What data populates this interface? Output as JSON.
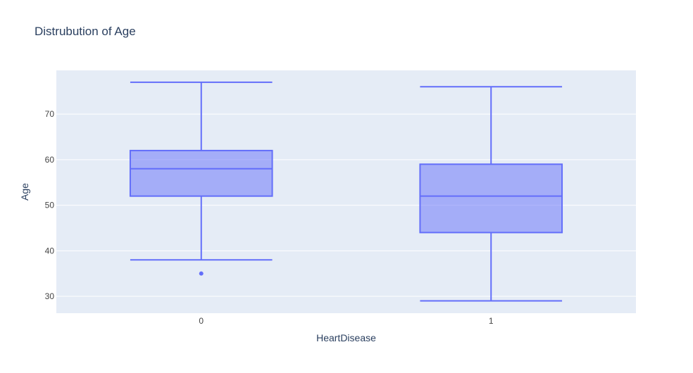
{
  "chart_data": {
    "type": "box",
    "title": "Distrubution of Age",
    "xlabel": "HeartDisease",
    "ylabel": "Age",
    "categories": [
      "0",
      "1"
    ],
    "ylim": [
      26.3,
      79.6
    ],
    "yticks": [
      30,
      40,
      50,
      60,
      70
    ],
    "grid": true,
    "boxes": [
      {
        "category": "0",
        "min": 38,
        "q1": 52,
        "median": 58,
        "q3": 62,
        "max": 77,
        "outliers": [
          35
        ]
      },
      {
        "category": "1",
        "min": 29,
        "q1": 44,
        "median": 52,
        "q3": 59,
        "max": 76,
        "outliers": []
      }
    ],
    "colors": {
      "box_fill": "rgba(99,110,250,0.5)",
      "box_line": "#636efa",
      "plot_bg": "#e5ecf6",
      "grid": "#ffffff",
      "text": "#2a3f5f",
      "tick_text": "#444444"
    }
  }
}
